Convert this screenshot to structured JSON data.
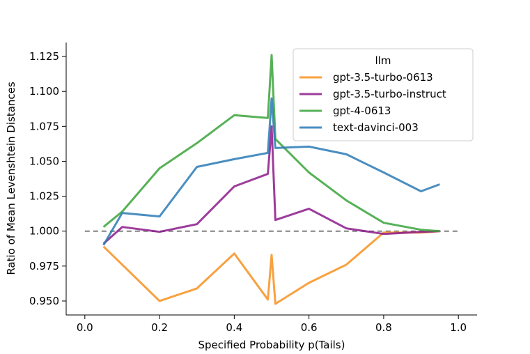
{
  "chart_data": {
    "type": "line",
    "title": "",
    "xlabel": "Specified Probability  p(Tails)",
    "ylabel": "Ratio of Mean Levenshtein Distances",
    "xlim": [
      -0.05,
      1.05
    ],
    "ylim": [
      0.94,
      1.135
    ],
    "xticks": [
      0.0,
      0.2,
      0.4,
      0.6,
      0.8,
      1.0
    ],
    "xtick_labels": [
      "0.0",
      "0.2",
      "0.4",
      "0.6",
      "0.8",
      "1.0"
    ],
    "yticks": [
      0.95,
      0.975,
      1.0,
      1.025,
      1.05,
      1.075,
      1.1,
      1.125
    ],
    "ytick_labels": [
      "0.950",
      "0.975",
      "1.000",
      "1.025",
      "1.050",
      "1.075",
      "1.100",
      "1.125"
    ],
    "reference_line": {
      "y": 1.0,
      "style": "dashed",
      "color": "#808080"
    },
    "legend": {
      "title": "llm",
      "position": "upper-right"
    },
    "series": [
      {
        "name": "gpt-3.5-turbo-0613",
        "color": "#f7901e",
        "x": [
          0.05,
          0.1,
          0.2,
          0.3,
          0.4,
          0.49,
          0.5,
          0.51,
          0.6,
          0.7,
          0.8,
          0.9,
          0.95
        ],
        "y": [
          0.989,
          0.976,
          0.95,
          0.959,
          0.984,
          0.951,
          0.983,
          0.948,
          0.963,
          0.976,
          0.999,
          0.999,
          1.0
        ]
      },
      {
        "name": "gpt-3.5-turbo-instruct",
        "color": "#8b1a8b",
        "x": [
          0.05,
          0.1,
          0.2,
          0.3,
          0.4,
          0.49,
          0.5,
          0.51,
          0.6,
          0.7,
          0.8,
          0.9,
          0.95
        ],
        "y": [
          0.991,
          1.003,
          0.9995,
          1.005,
          1.032,
          1.041,
          1.075,
          1.008,
          1.016,
          1.002,
          0.998,
          0.9995,
          1.0
        ]
      },
      {
        "name": "gpt-4-0613",
        "color": "#3aa33a",
        "x": [
          0.05,
          0.1,
          0.2,
          0.3,
          0.4,
          0.49,
          0.5,
          0.51,
          0.6,
          0.7,
          0.8,
          0.9,
          0.95
        ],
        "y": [
          1.003,
          1.014,
          1.045,
          1.063,
          1.083,
          1.081,
          1.126,
          1.066,
          1.042,
          1.022,
          1.006,
          1.001,
          1.0
        ]
      },
      {
        "name": "text-davinci-003",
        "color": "#2a7ab5",
        "x": [
          0.05,
          0.1,
          0.2,
          0.3,
          0.4,
          0.49,
          0.5,
          0.51,
          0.6,
          0.7,
          0.8,
          0.9,
          0.95
        ],
        "y": [
          0.99,
          1.013,
          1.0105,
          1.046,
          1.0515,
          1.056,
          1.095,
          1.0595,
          1.0605,
          1.055,
          1.042,
          1.0285,
          1.0335
        ]
      }
    ]
  }
}
